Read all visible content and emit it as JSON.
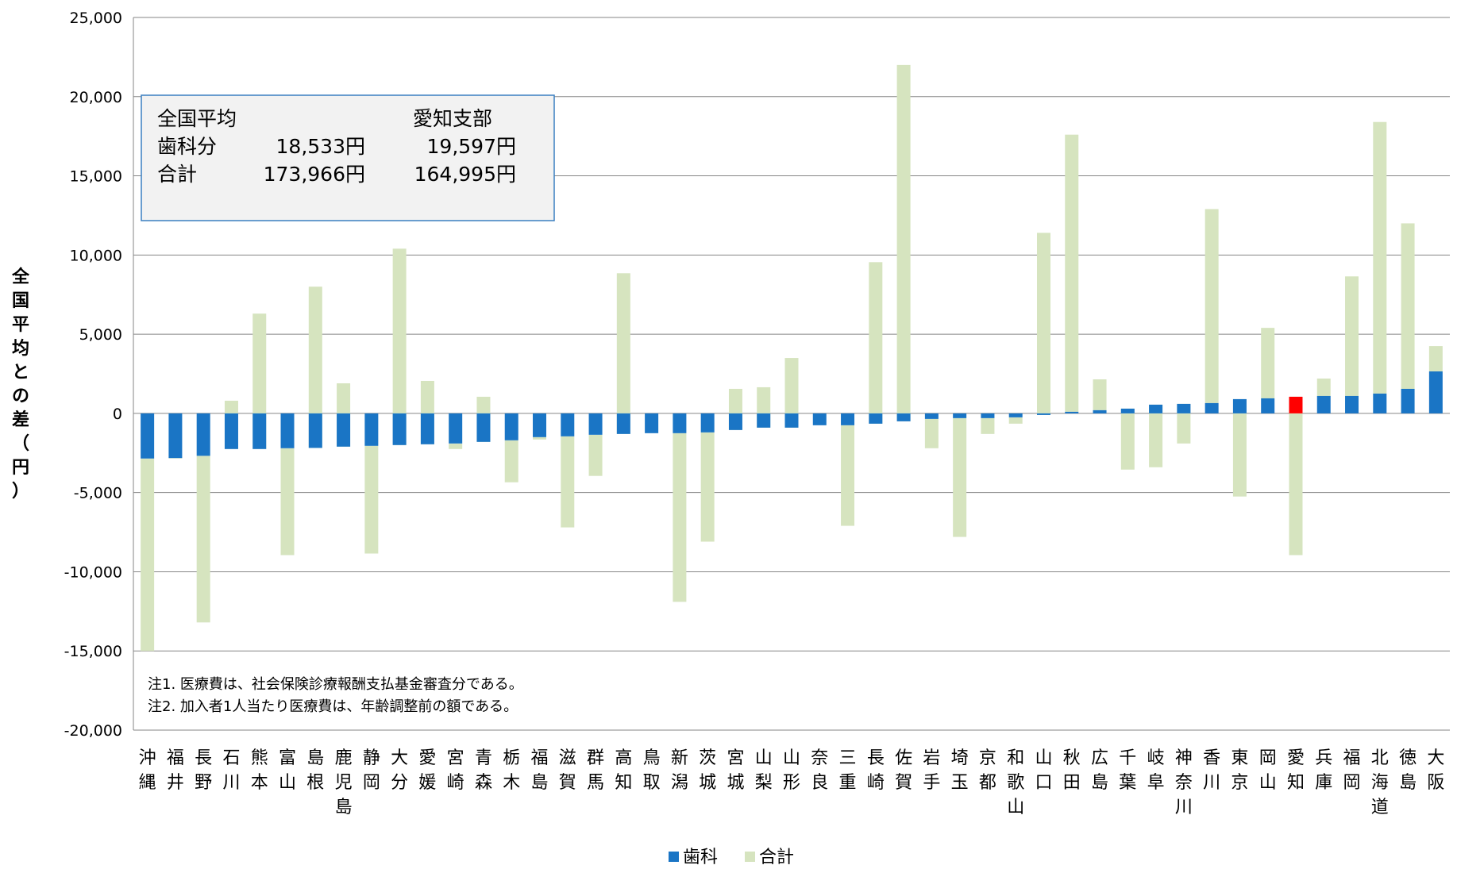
{
  "chart_data": {
    "type": "bar",
    "ylabel": "全国平均との差（円）",
    "ylim": [
      -20000,
      25000
    ],
    "yticks": [
      25000,
      20000,
      15000,
      10000,
      5000,
      0,
      -5000,
      -10000,
      -15000,
      -20000
    ],
    "ytick_labels": [
      "25,000",
      "20,000",
      "15,000",
      "10,000",
      "5,000",
      "0",
      "-5,000",
      "-10,000",
      "-15,000",
      "-20,000"
    ],
    "grid": true,
    "legend_position": "bottom",
    "categories": [
      "沖縄",
      "福井",
      "長野",
      "石川",
      "熊本",
      "富山",
      "島根",
      "鹿児島",
      "静岡",
      "大分",
      "愛媛",
      "宮崎",
      "青森",
      "栃木",
      "福島",
      "滋賀",
      "群馬",
      "高知",
      "鳥取",
      "新潟",
      "茨城",
      "宮城",
      "山梨",
      "山形",
      "奈良",
      "三重",
      "長崎",
      "佐賀",
      "岩手",
      "埼玉",
      "京都",
      "和歌山",
      "山口",
      "秋田",
      "広島",
      "千葉",
      "岐阜",
      "神奈川",
      "香川",
      "東京",
      "岡山",
      "愛知",
      "兵庫",
      "福岡",
      "北海道",
      "徳島",
      "大阪"
    ],
    "highlight_category": "愛知",
    "series": [
      {
        "name": "歯科",
        "color": "#1a75c5",
        "values": [
          -2850,
          -2820,
          -2680,
          -2250,
          -2250,
          -2200,
          -2180,
          -2100,
          -2050,
          -2000,
          -1950,
          -1900,
          -1800,
          -1700,
          -1500,
          -1450,
          -1350,
          -1300,
          -1250,
          -1250,
          -1200,
          -1050,
          -900,
          -900,
          -750,
          -750,
          -650,
          -500,
          -350,
          -300,
          -300,
          -250,
          -100,
          100,
          200,
          300,
          550,
          600,
          650,
          900,
          950,
          1050,
          1100,
          1100,
          1250,
          1550,
          2650
        ]
      },
      {
        "name": "合計",
        "color": "#d6e4bf",
        "values": [
          -15000,
          -2850,
          -13200,
          800,
          6300,
          -8950,
          8000,
          1900,
          -8850,
          10400,
          2050,
          -2250,
          1050,
          -4350,
          -1650,
          -7200,
          -3950,
          8850,
          -1250,
          -11900,
          -8100,
          1550,
          1650,
          3500,
          -750,
          -7100,
          9550,
          22000,
          -2200,
          -7800,
          -1300,
          -650,
          11400,
          17600,
          2150,
          -3550,
          -3400,
          -1900,
          12900,
          -5250,
          5400,
          -8950,
          2200,
          8650,
          18400,
          12000,
          4250
        ]
      }
    ],
    "annotations": [
      "注1. 医療費は、社会保険診療報酬支払基金審査分である。",
      "注2. 加入者1人当たり医療費は、年齢調整前の額である。"
    ]
  },
  "info_box": {
    "header_left": "全国平均",
    "header_right": "愛知支部",
    "rows": [
      {
        "label": "歯科分",
        "national": "18,533円",
        "aichi": "19,597円"
      },
      {
        "label": "合計",
        "national": "173,966円",
        "aichi": "164,995円"
      }
    ]
  },
  "colors": {
    "dental": "#1a75c5",
    "total": "#d6e4bf",
    "highlight": "#ff0000",
    "grid": "#868686",
    "box_border": "#3a7fc1"
  }
}
